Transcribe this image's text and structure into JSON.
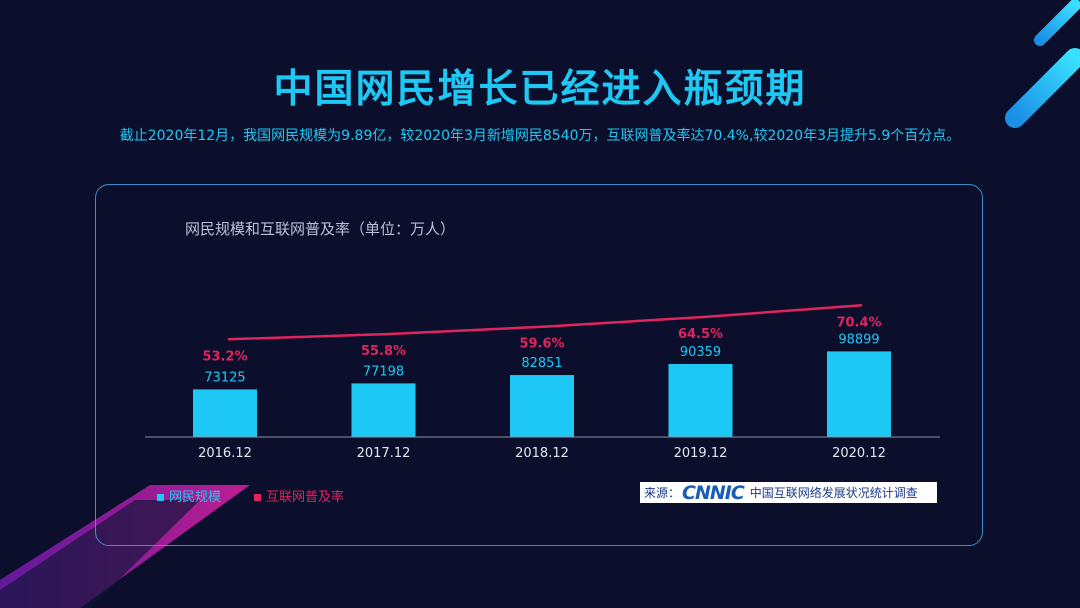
{
  "header": {
    "title": "中国网民增长已经进入瓶颈期",
    "subtitle": "截止2020年12月，我国网民规模为9.89亿，较2020年3月新增网民8540万，互联网普及率达70.4%,较2020年3月提升5.9个百分点。"
  },
  "chart_data": {
    "type": "bar",
    "title": "网民规模和互联网普及率（单位：万人）",
    "categories": [
      "2016.12",
      "2017.12",
      "2018.12",
      "2019.12",
      "2020.12"
    ],
    "series": [
      {
        "name": "网民规模",
        "type": "bar",
        "values": [
          73125,
          77198,
          82851,
          90359,
          98899
        ],
        "labels": [
          "73125",
          "77198",
          "82851",
          "90359",
          "98899"
        ],
        "color": "#1ec8f5"
      },
      {
        "name": "互联网普及率",
        "type": "line",
        "values": [
          53.2,
          55.8,
          59.6,
          64.5,
          70.4
        ],
        "labels": [
          "53.2%",
          "55.8%",
          "59.6%",
          "64.5%",
          "70.4%"
        ],
        "color": "#e0245e"
      }
    ],
    "legend_position": "bottom-left",
    "grid": false
  },
  "source": {
    "label": "来源：",
    "logo": "CNNIC",
    "org": "中国互联网络发展状况统计调查"
  },
  "colors": {
    "background": "#0c0f2b",
    "accent": "#1ec8f5",
    "line": "#e0245e",
    "panel_border": "#3d8fc9"
  }
}
